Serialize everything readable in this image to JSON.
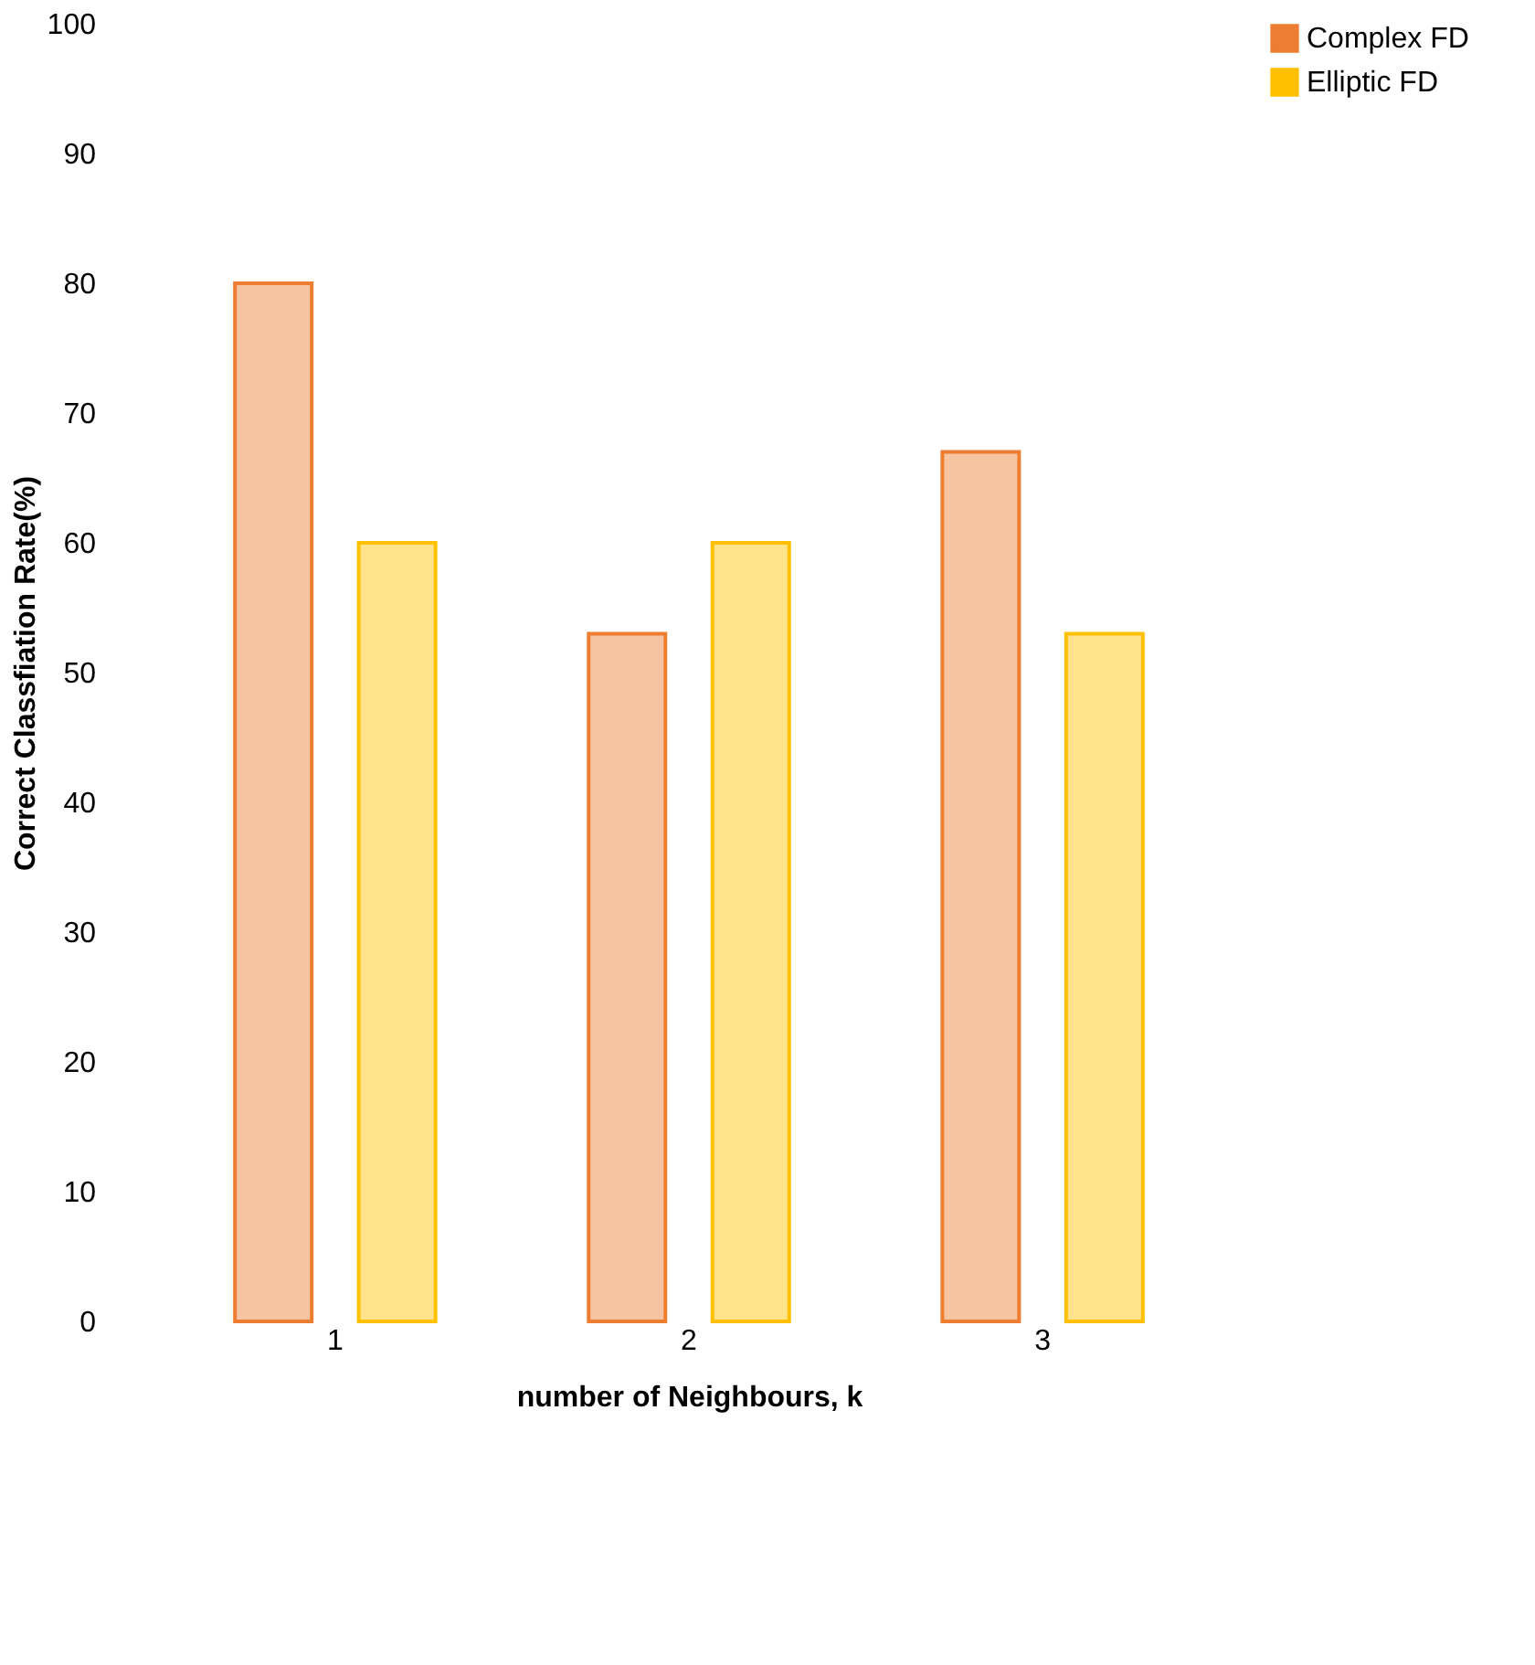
{
  "chart_data": {
    "type": "bar",
    "xlabel": "number of Neighbours, k",
    "ylabel": "Correct Classfiation Rate(%)",
    "categories": [
      "1",
      "2",
      "3"
    ],
    "series": [
      {
        "name": "Complex FD",
        "color": "#ed7d31",
        "values": [
          80,
          53,
          67
        ]
      },
      {
        "name": "Elliptic FD",
        "color": "#ffc000",
        "values": [
          60,
          60,
          53
        ]
      }
    ],
    "ylim": [
      0,
      100
    ],
    "yticks": [
      0,
      10,
      20,
      30,
      40,
      50,
      60,
      70,
      80,
      90,
      100
    ],
    "grid": false,
    "legend": "right"
  }
}
